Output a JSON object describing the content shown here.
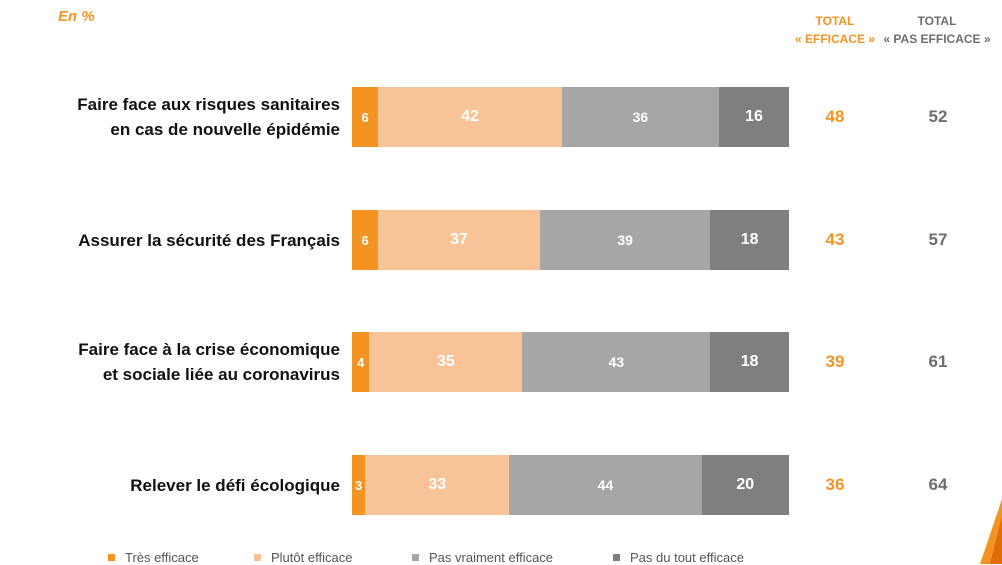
{
  "header": {
    "unit_label": "En %",
    "col_efficace": [
      "TOTAL",
      "« EFFICACE »"
    ],
    "col_pas_efficace": [
      "TOTAL",
      "« PAS EFFICACE »"
    ]
  },
  "colors": {
    "tres_efficace": "#F39322",
    "plutot_efficace": "#F8C396",
    "pas_vraiment_efficace": "#A6A6A6",
    "pas_du_tout_efficace": "#7F7F7F"
  },
  "chart_data": {
    "type": "bar",
    "orientation": "horizontal",
    "stacked": true,
    "title": "",
    "unit": "En %",
    "categories": [
      [
        "Faire face aux risques sanitaires",
        "en cas de nouvelle épidémie"
      ],
      [
        "Assurer la sécurité des Français"
      ],
      [
        "Faire face à la crise économique",
        "et sociale liée au coronavirus"
      ],
      [
        "Relever le défi écologique"
      ]
    ],
    "series": [
      {
        "name": "Très efficace",
        "values": [
          6,
          6,
          4,
          3
        ]
      },
      {
        "name": "Plutôt efficace",
        "values": [
          42,
          37,
          35,
          33
        ]
      },
      {
        "name": "Pas vraiment efficace",
        "values": [
          36,
          39,
          43,
          44
        ]
      },
      {
        "name": "Pas du tout efficace",
        "values": [
          16,
          18,
          18,
          20
        ]
      }
    ],
    "totals": {
      "efficace": [
        48,
        43,
        39,
        36
      ],
      "pas_efficace": [
        52,
        57,
        61,
        64
      ]
    },
    "xlim": [
      0,
      100
    ],
    "legend_position": "bottom"
  }
}
